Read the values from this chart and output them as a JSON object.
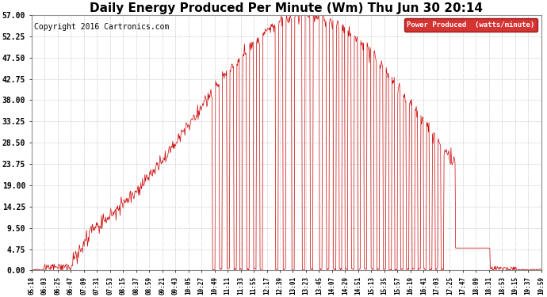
{
  "title": "Daily Energy Produced Per Minute (Wm) Thu Jun 30 20:14",
  "copyright": "Copyright 2016 Cartronics.com",
  "legend_label": "Power Produced  (watts/minute)",
  "legend_bg": "#cc0000",
  "legend_fg": "#ffffff",
  "line_color": "#cc0000",
  "bg_color": "#ffffff",
  "grid_color": "#aaaaaa",
  "yticks": [
    0.0,
    4.75,
    9.5,
    14.25,
    19.0,
    23.75,
    28.5,
    33.25,
    38.0,
    42.75,
    47.5,
    52.25,
    57.0
  ],
  "ymax": 57.0,
  "ymin": 0.0,
  "title_fontsize": 11,
  "copyright_fontsize": 7,
  "xtick_fontsize": 5.5,
  "ytick_fontsize": 7,
  "x_tick_labels": [
    "05:18",
    "06:03",
    "06:25",
    "06:47",
    "07:09",
    "07:31",
    "07:53",
    "08:15",
    "08:37",
    "08:59",
    "09:21",
    "09:43",
    "10:05",
    "10:27",
    "10:49",
    "11:11",
    "11:33",
    "11:55",
    "12:17",
    "12:39",
    "13:01",
    "13:23",
    "13:45",
    "14:07",
    "14:29",
    "14:51",
    "15:13",
    "15:35",
    "15:57",
    "16:19",
    "16:41",
    "17:03",
    "17:25",
    "17:47",
    "18:09",
    "18:31",
    "18:53",
    "19:15",
    "19:37",
    "19:59"
  ]
}
